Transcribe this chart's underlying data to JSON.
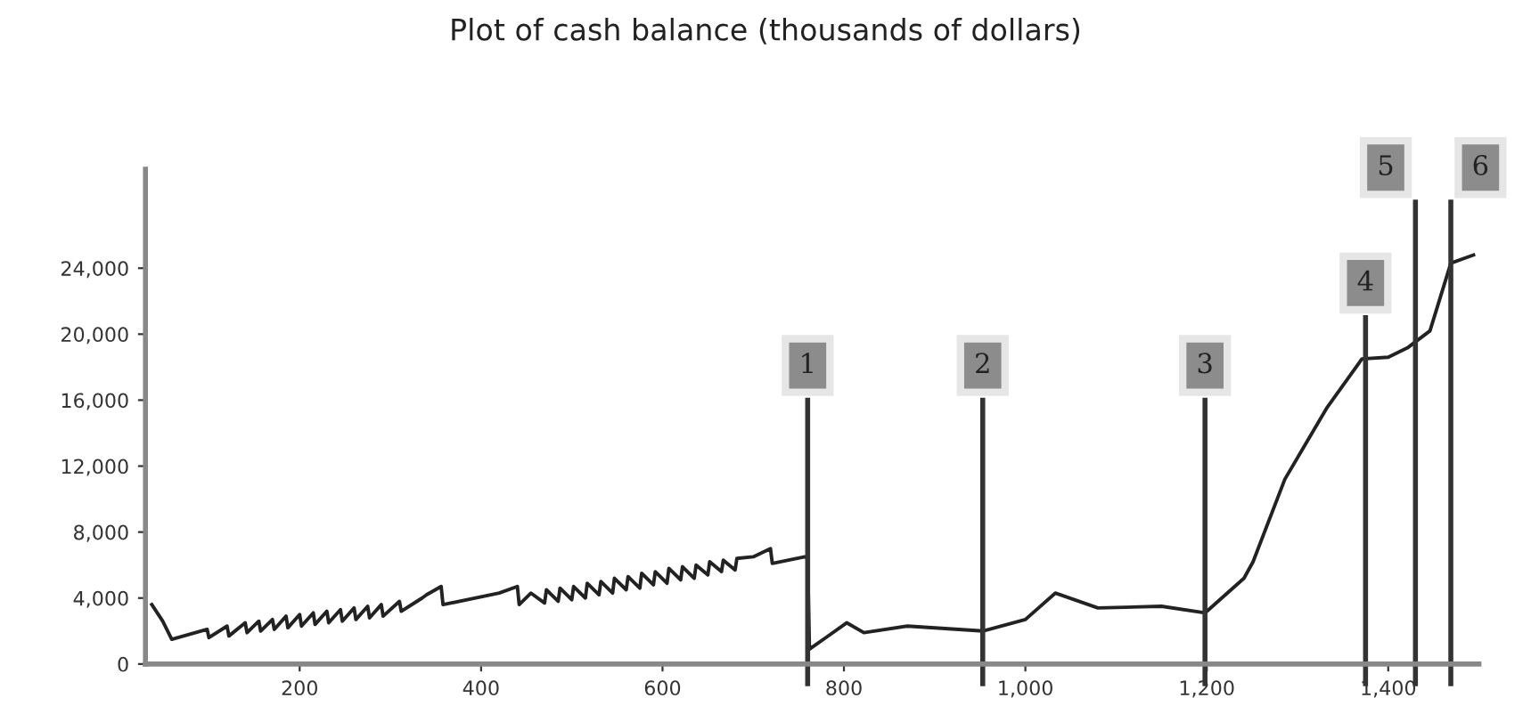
{
  "chart_data": {
    "type": "line",
    "title": "Plot of cash balance (thousands of dollars)",
    "series": [
      {
        "color": "#222222",
        "x": [
          37,
          49,
          59,
          98,
          100,
          120,
          122,
          140,
          142,
          155,
          157,
          170,
          172,
          185,
          187,
          200,
          202,
          215,
          217,
          230,
          232,
          245,
          247,
          260,
          262,
          275,
          277,
          290,
          292,
          310,
          312,
          335,
          340,
          356,
          358,
          420,
          440,
          442,
          455,
          470,
          472,
          485,
          487,
          500,
          502,
          515,
          517,
          530,
          532,
          545,
          547,
          560,
          562,
          575,
          577,
          590,
          592,
          605,
          607,
          620,
          622,
          635,
          637,
          650,
          652,
          665,
          667,
          680,
          682,
          700,
          719,
          721,
          757,
          760,
          762,
          780,
          803,
          822,
          870,
          953,
          1000,
          1033,
          1080,
          1150,
          1198,
          1241,
          1251,
          1286,
          1332,
          1371,
          1400,
          1422,
          1446,
          1469,
          1494
        ],
        "values": [
          3600,
          2600,
          1500,
          2100,
          1600,
          2300,
          1700,
          2500,
          1900,
          2600,
          2000,
          2700,
          2100,
          2900,
          2200,
          3000,
          2300,
          3100,
          2400,
          3200,
          2500,
          3300,
          2600,
          3400,
          2700,
          3500,
          2800,
          3600,
          2900,
          3800,
          3200,
          4000,
          4200,
          4700,
          3600,
          4300,
          4700,
          3600,
          4300,
          3700,
          4500,
          3800,
          4600,
          3900,
          4700,
          4000,
          4900,
          4200,
          5000,
          4300,
          5200,
          4500,
          5300,
          4600,
          5500,
          4800,
          5600,
          4900,
          5800,
          5100,
          5900,
          5200,
          6000,
          5400,
          6200,
          5600,
          6300,
          5700,
          6400,
          6500,
          7000,
          6100,
          6500,
          6400,
          900,
          1600,
          2500,
          1900,
          2300,
          2000,
          2700,
          4300,
          3400,
          3500,
          3100,
          5200,
          6200,
          11200,
          15500,
          18500,
          18600,
          19200,
          20200,
          24300,
          24800
        ]
      }
    ],
    "xlim": [
      30,
      1500
    ],
    "ylim": [
      0,
      30000
    ],
    "xticks": [
      200,
      400,
      600,
      {
        "value": 800,
        "label": "800"
      },
      {
        "value": 1000,
        "label": "1,000"
      },
      {
        "value": 1200,
        "label": "1,200"
      },
      {
        "value": 1400,
        "label": "1,400"
      }
    ],
    "yticks": [
      0,
      {
        "value": 4000,
        "label": "4,000"
      },
      {
        "value": 8000,
        "label": "8,000"
      },
      {
        "value": 12000,
        "label": "12,000"
      },
      {
        "value": 16000,
        "label": "16,000"
      },
      {
        "value": 20000,
        "label": "20,000"
      },
      {
        "value": 24000,
        "label": "24,000"
      }
    ],
    "ref_lines": [
      {
        "axis": "x",
        "value": 760,
        "color": "#333333"
      },
      {
        "axis": "x",
        "value": 953,
        "color": "#333333"
      },
      {
        "axis": "x",
        "value": 1198,
        "color": "#333333"
      },
      {
        "axis": "x",
        "value": 1375,
        "color": "#333333"
      },
      {
        "axis": "x",
        "value": 1430,
        "color": "#333333"
      },
      {
        "axis": "x",
        "value": 1469,
        "color": "#333333"
      }
    ],
    "annotations": [
      {
        "text": "1",
        "x": 760,
        "y": 16000
      },
      {
        "text": "2",
        "x": 953,
        "y": 16000
      },
      {
        "text": "3",
        "x": 1198,
        "y": 16000
      },
      {
        "text": "4",
        "x": 1375,
        "y": 21000
      },
      {
        "text": "5",
        "x": 1430,
        "y": 28000
      },
      {
        "text": "6",
        "x": 1469,
        "y": 28000
      }
    ],
    "grid": false,
    "legend": false,
    "marker": "none",
    "line_style": "solid"
  }
}
